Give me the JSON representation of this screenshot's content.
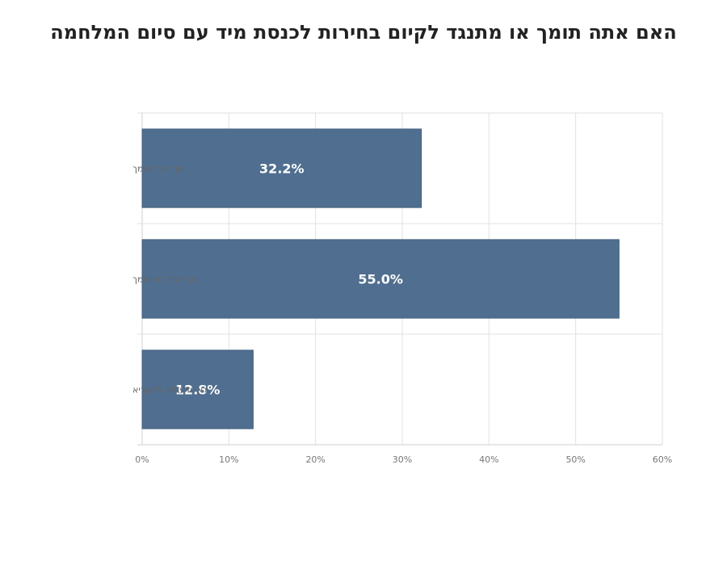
{
  "chart_data": {
    "type": "bar",
    "orientation": "horizontal",
    "title": "האם אתה תומך או מתנגד לקיום בחירות לכנסת מיד עם סיום המלחמה",
    "categories": [
      "סך הכל תומך",
      "סך הכל לא תומך",
      "לא יודע\\לא להקריא"
    ],
    "values": [
      32.2,
      55.0,
      12.8
    ],
    "data_labels": [
      "32.2%",
      "55.0%",
      "12.8%"
    ],
    "xlim": [
      0,
      60
    ],
    "x_ticks": [
      0,
      10,
      20,
      30,
      40,
      50,
      60
    ],
    "x_tick_labels": [
      "0%",
      "10%",
      "20%",
      "30%",
      "40%",
      "50%",
      "60%"
    ],
    "xlabel": "",
    "ylabel": "",
    "grid": true,
    "legend": "none",
    "bar_color": "#506e8f",
    "bar_edge_color": "#44607f"
  }
}
